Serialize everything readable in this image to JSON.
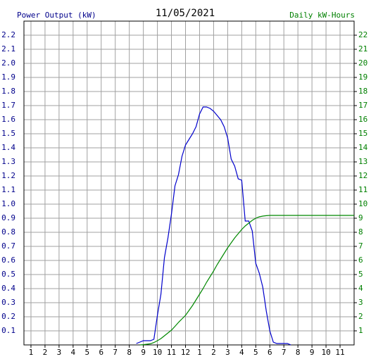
{
  "chart_data": {
    "type": "line",
    "title": "11/05/2021",
    "ylabel": "Power Output (kW)",
    "y2label": "Daily kW-Hours",
    "xlim": [
      0.5,
      24
    ],
    "xticks": [
      1,
      2,
      3,
      4,
      5,
      6,
      7,
      8,
      9,
      10,
      11,
      12,
      {
        "value": 13,
        "label": "1"
      },
      {
        "value": 14,
        "label": "2"
      },
      {
        "value": 15,
        "label": "3"
      },
      {
        "value": 16,
        "label": "4"
      },
      {
        "value": 17,
        "label": "5"
      },
      {
        "value": 18,
        "label": "6"
      },
      {
        "value": 19,
        "label": "7"
      },
      {
        "value": 20,
        "label": "8"
      },
      {
        "value": 21,
        "label": "9"
      },
      {
        "value": 22,
        "label": "10"
      },
      {
        "value": 23,
        "label": "11"
      }
    ],
    "ylim": [
      0,
      2.3
    ],
    "yticks": [
      0.1,
      0.2,
      0.3,
      0.4,
      0.5,
      0.6,
      0.7,
      0.8,
      0.9,
      {
        "value": 1,
        "label": "1.0"
      },
      1.1,
      1.2,
      1.3,
      1.4,
      1.5,
      1.6,
      1.7,
      1.8,
      1.9,
      {
        "value": 2,
        "label": "2.0"
      },
      2.1,
      2.2
    ],
    "y2lim": [
      0,
      23
    ],
    "y2ticks": [
      1,
      2,
      3,
      4,
      5,
      6,
      7,
      8,
      9,
      10,
      11,
      12,
      13,
      14,
      15,
      16,
      17,
      18,
      19,
      20,
      21,
      22
    ],
    "grid": true,
    "ylabel_color": "#00008b",
    "y2label_color": "#008000",
    "series": [
      {
        "color": "#0000cc",
        "x": [
          8.5,
          8.75,
          9,
          9.25,
          9.5,
          9.75,
          10,
          10.25,
          10.5,
          10.75,
          11,
          11.25,
          11.5,
          11.75,
          12,
          12.25,
          12.5,
          12.75,
          13,
          13.25,
          13.5,
          13.75,
          14,
          14.25,
          14.5,
          14.75,
          15,
          15.25,
          15.5,
          15.75,
          16,
          16.25,
          16.5,
          16.75,
          17,
          17.25,
          17.5,
          17.75,
          18,
          18.25,
          18.5,
          18.75,
          19,
          19.25,
          19.5
        ],
        "values": [
          0.01,
          0.02,
          0.03,
          0.03,
          0.03,
          0.04,
          0.21,
          0.36,
          0.62,
          0.76,
          0.93,
          1.13,
          1.21,
          1.34,
          1.42,
          1.46,
          1.5,
          1.55,
          1.64,
          1.69,
          1.69,
          1.68,
          1.66,
          1.63,
          1.6,
          1.55,
          1.47,
          1.32,
          1.27,
          1.18,
          1.17,
          0.88,
          0.88,
          0.81,
          0.58,
          0.51,
          0.41,
          0.24,
          0.1,
          0.02,
          0.01,
          0.01,
          0.01,
          0.01,
          0
        ]
      },
      {
        "color": "#008800",
        "axis": "y2",
        "x": [
          8.75,
          9,
          9.25,
          9.5,
          9.75,
          10,
          10.25,
          10.5,
          10.75,
          11,
          11.25,
          11.5,
          11.75,
          12,
          12.25,
          12.5,
          12.75,
          13,
          13.25,
          13.5,
          13.75,
          14,
          14.25,
          14.5,
          14.75,
          15,
          15.25,
          15.5,
          15.75,
          16,
          16.25,
          16.5,
          16.75,
          17,
          17.25,
          17.5,
          17.75,
          18,
          24
        ],
        "values": [
          0,
          0.02,
          0.05,
          0.08,
          0.17,
          0.3,
          0.45,
          0.65,
          0.85,
          1.05,
          1.32,
          1.6,
          1.85,
          2.1,
          2.45,
          2.8,
          3.2,
          3.6,
          4.0,
          4.45,
          4.85,
          5.25,
          5.7,
          6.1,
          6.5,
          6.9,
          7.25,
          7.6,
          7.9,
          8.2,
          8.45,
          8.65,
          8.85,
          9.0,
          9.1,
          9.15,
          9.18,
          9.2,
          9.2
        ]
      }
    ]
  }
}
